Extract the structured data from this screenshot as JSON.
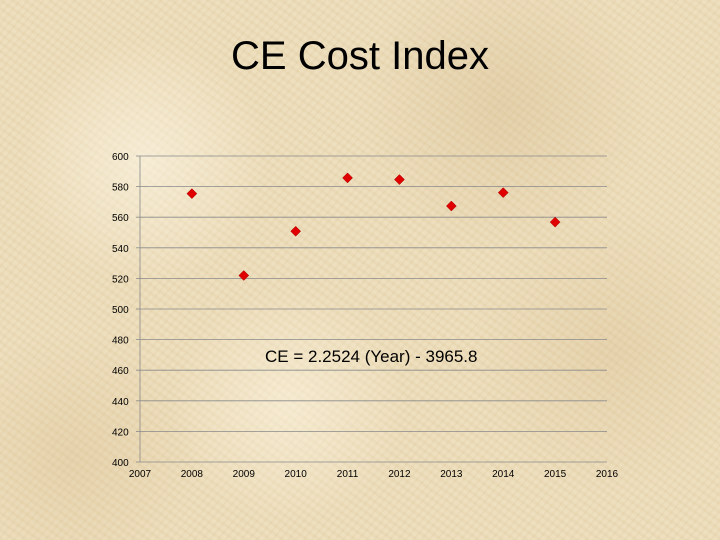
{
  "slide": {
    "title": "CE Cost Index"
  },
  "chart_data": {
    "type": "scatter",
    "title": "CE Cost Index",
    "xlabel": "",
    "ylabel": "",
    "xlim": [
      2007,
      2016
    ],
    "ylim": [
      400,
      600
    ],
    "x_ticks": [
      2007,
      2008,
      2009,
      2010,
      2011,
      2012,
      2013,
      2014,
      2015,
      2016
    ],
    "y_ticks": [
      400,
      420,
      440,
      460,
      480,
      500,
      520,
      540,
      560,
      580,
      600
    ],
    "grid": true,
    "legend": "none",
    "marker": "diamond",
    "marker_color": "#e00000",
    "series": [
      {
        "x": [
          2008,
          2009,
          2010,
          2011,
          2012,
          2013,
          2014,
          2015
        ],
        "y": [
          575.4,
          521.9,
          550.8,
          585.7,
          584.6,
          567.3,
          576.1,
          556.8
        ]
      }
    ],
    "annotation": "CE = 2.2524 (Year) - 3965.8"
  }
}
